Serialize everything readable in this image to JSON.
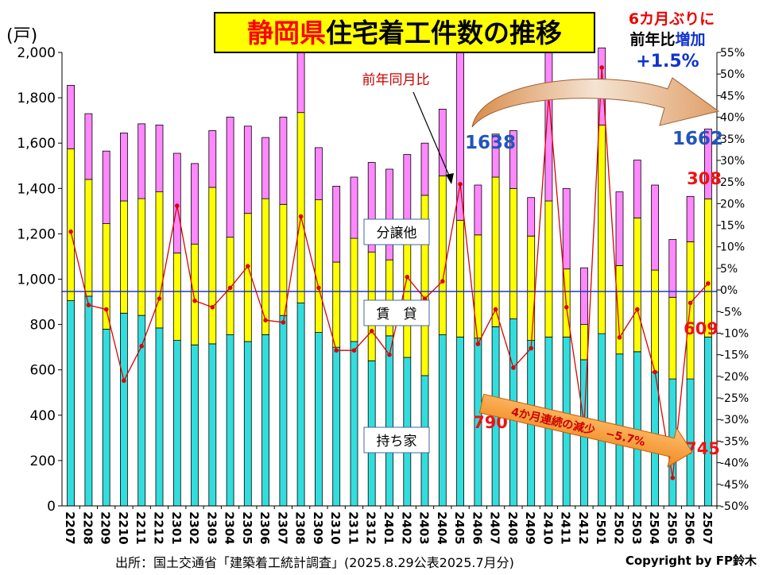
{
  "title_part1": "静岡県",
  "title_part2": "住宅着工件数の推移",
  "unit": "(戸)",
  "notice": {
    "line1": "6カ月ぶりに",
    "line2a": "前年比",
    "line2b": "増加",
    "line3": "+1.5%"
  },
  "labels": {
    "yoy": "前年同月比",
    "bunjo": "分譲他",
    "chintai": "賃　貸",
    "mochiie": "持ち家"
  },
  "callouts": {
    "v1638": "1638",
    "v1662": "1662",
    "v308": "308",
    "v609": "609",
    "v790": "790",
    "v745": "745"
  },
  "arrow_text": "4か月連続の減少　−5.7%",
  "source": "出所：国土交通省「建築着工統計調査」(2025.8.29公表2025.7月分)",
  "copyright": "Copyright by FP鈴木",
  "colors": {
    "mochiie": "#33dddd",
    "chintai": "#ffff00",
    "bunjo": "#ff88ff",
    "line": "#dd0000",
    "zero_line": "#2233cc",
    "title_bg": "#ffff00",
    "title_red": "#ff0000",
    "blue_text": "#2255bb"
  },
  "chart_data": {
    "type": "bar",
    "stacked": true,
    "categories": [
      "2207",
      "2208",
      "2209",
      "2210",
      "2211",
      "2212",
      "2301",
      "2302",
      "2303",
      "2304",
      "2305",
      "2306",
      "2307",
      "2308",
      "2309",
      "2310",
      "2311",
      "2312",
      "2401",
      "2402",
      "2403",
      "2404",
      "2405",
      "2406",
      "2407",
      "2408",
      "2409",
      "2410",
      "2411",
      "2412",
      "2501",
      "2502",
      "2503",
      "2504",
      "2505",
      "2506",
      "2507"
    ],
    "series": [
      {
        "name": "持ち家",
        "values": [
          905,
          925,
          780,
          850,
          840,
          785,
          730,
          710,
          715,
          755,
          725,
          755,
          840,
          895,
          765,
          700,
          725,
          640,
          750,
          655,
          575,
          755,
          745,
          740,
          790,
          825,
          730,
          745,
          745,
          645,
          760,
          670,
          680,
          590,
          560,
          560,
          745
        ]
      },
      {
        "name": "賃　貸",
        "values": [
          670,
          515,
          465,
          495,
          515,
          600,
          385,
          445,
          690,
          430,
          565,
          600,
          490,
          840,
          585,
          375,
          455,
          480,
          335,
          560,
          795,
          700,
          515,
          455,
          660,
          575,
          460,
          600,
          300,
          155,
          920,
          390,
          590,
          450,
          360,
          605,
          609
        ]
      },
      {
        "name": "分譲他",
        "values": [
          280,
          290,
          320,
          300,
          330,
          295,
          440,
          355,
          250,
          530,
          385,
          270,
          385,
          290,
          230,
          335,
          270,
          395,
          400,
          335,
          230,
          295,
          815,
          220,
          190,
          255,
          170,
          705,
          355,
          250,
          340,
          325,
          255,
          375,
          255,
          200,
          308
        ]
      },
      {
        "name": "前年同月比",
        "axis": "right",
        "values": [
          13.5,
          -3.5,
          -4.5,
          -21,
          -13,
          -2,
          19.5,
          -2.5,
          -4,
          0.5,
          5.5,
          -7,
          -7.5,
          17,
          0.5,
          -14,
          -14,
          -9.5,
          -15,
          3,
          -2,
          2,
          24.5,
          -12.5,
          -4.5,
          -18,
          -13.5,
          45,
          -4,
          -31,
          51.5,
          -11,
          -4.5,
          -19,
          -43.5,
          -3,
          1.5
        ]
      }
    ],
    "ylim": [
      0,
      2000
    ],
    "y_ticks": [
      "0",
      "200",
      "400",
      "600",
      "800",
      "1,000",
      "1,200",
      "1,400",
      "1,600",
      "1,800",
      "2,000"
    ],
    "y2lim": [
      -50,
      55
    ],
    "y2_ticks": [
      "-50%",
      "-45%",
      "-40%",
      "-35%",
      "-30%",
      "-25%",
      "-20%",
      "-15%",
      "-10%",
      "-5%",
      "0%",
      "5%",
      "10%",
      "15%",
      "20%",
      "25%",
      "30%",
      "35%",
      "40%",
      "45%",
      "50%",
      "55%"
    ],
    "grid": false,
    "legend": "inline labels"
  }
}
